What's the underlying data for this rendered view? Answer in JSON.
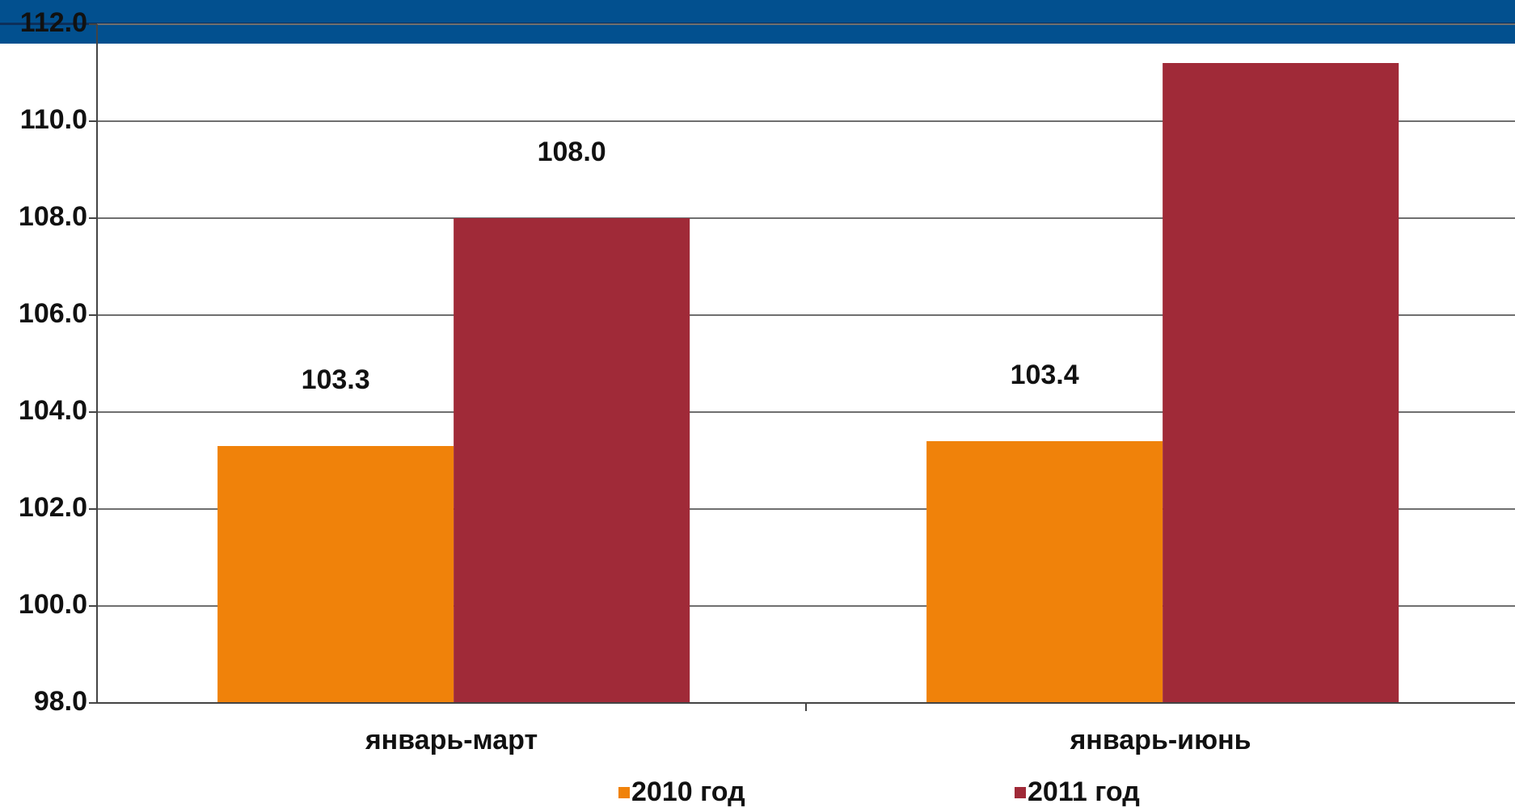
{
  "chart_data": {
    "type": "bar",
    "categories": [
      "январь-март",
      "январь-июнь"
    ],
    "series": [
      {
        "name": "2010 год",
        "color": "#f0820a",
        "values": [
          103.3,
          103.4
        ],
        "value_labels": [
          "103.3",
          "103.4"
        ]
      },
      {
        "name": "2011 год",
        "color": "#a02a38",
        "values": [
          108.0,
          111.2
        ],
        "value_labels": [
          "108.0",
          null
        ]
      }
    ],
    "ylim": [
      98,
      112
    ],
    "yticks": [
      {
        "value": 98,
        "label": "98.0"
      },
      {
        "value": 100,
        "label": "100.0"
      },
      {
        "value": 102,
        "label": "102.0"
      },
      {
        "value": 104,
        "label": "104.0"
      },
      {
        "value": 106,
        "label": "106.0"
      },
      {
        "value": 108,
        "label": "108.0"
      },
      {
        "value": 110,
        "label": "110.0"
      },
      {
        "value": 112,
        "label": "112.0"
      }
    ],
    "grid": true,
    "legend": "bottom"
  }
}
